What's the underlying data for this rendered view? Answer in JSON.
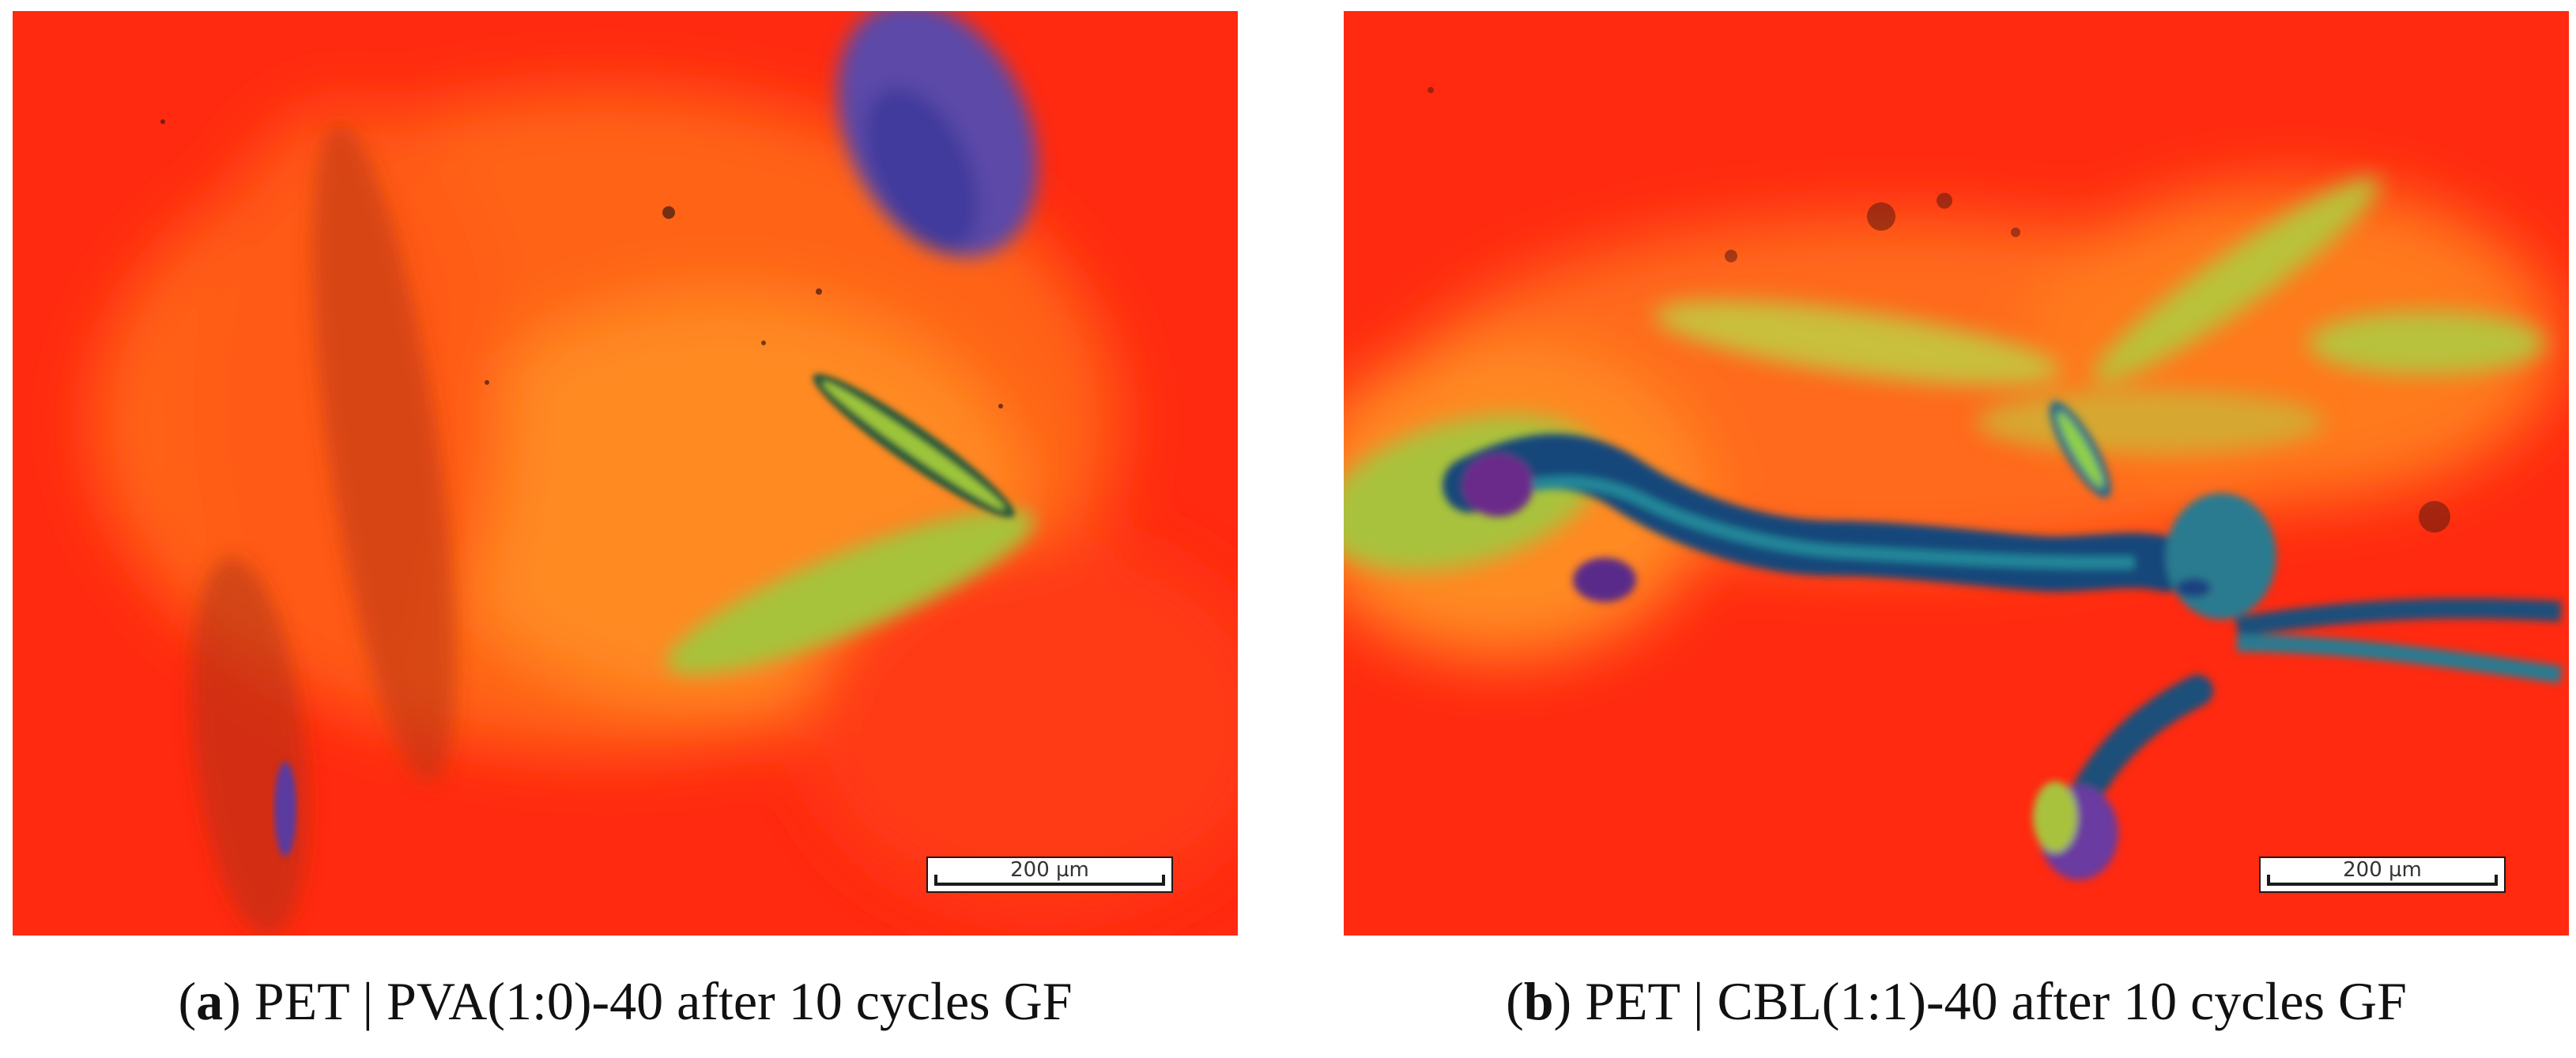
{
  "figure": {
    "panels": [
      {
        "id": "a",
        "scale_bar": "200 µm",
        "caption_label": "a",
        "caption_text": "PET | PVA(1:0)-40 after 10 cycles GF"
      },
      {
        "id": "b",
        "scale_bar": "200 µm",
        "caption_label": "b",
        "caption_text": "PET | CBL(1:1)-40 after 10 cycles GF"
      }
    ],
    "colors": {
      "background_red": "#ff2a10",
      "orange": "#ff7a1e",
      "yellow_green": "#b9c43a",
      "blue": "#1d4f8a",
      "violet": "#6a48a8"
    }
  }
}
